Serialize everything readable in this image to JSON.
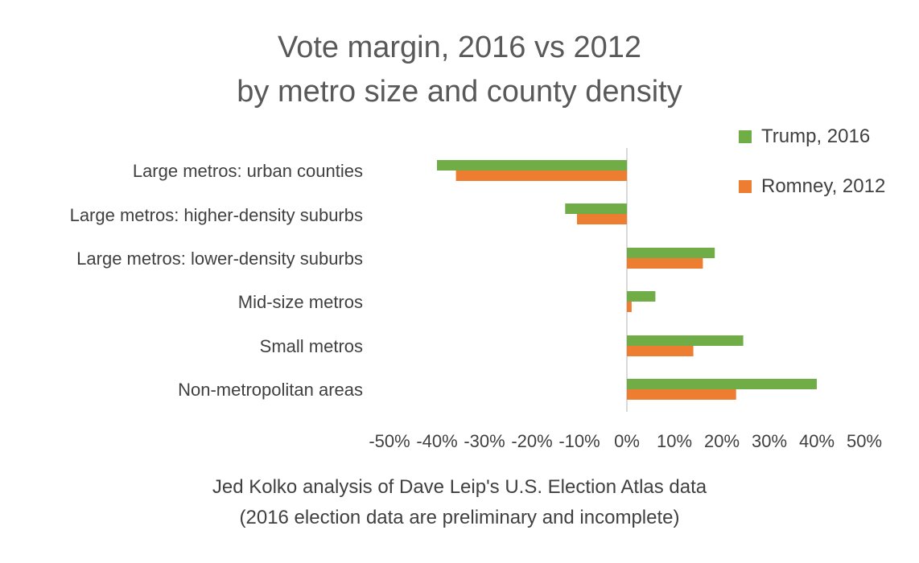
{
  "chart_data": {
    "type": "bar",
    "orientation": "horizontal",
    "title": "Vote margin, 2016 vs 2012",
    "subtitle": "by metro size and county density",
    "categories": [
      "Large metros: urban counties",
      "Large metros: higher-density suburbs",
      "Large metros: lower-density suburbs",
      "Mid-size metros",
      "Small metros",
      "Non-metropolitan areas"
    ],
    "series": [
      {
        "name": "Trump, 2016",
        "color": "#70ad47",
        "values": [
          -40,
          -13,
          18.5,
          6,
          24.5,
          40
        ]
      },
      {
        "name": "Romney, 2012",
        "color": "#ed7d31",
        "values": [
          -36,
          -10.5,
          16,
          1,
          14,
          23
        ]
      }
    ],
    "xlim": [
      -50,
      50
    ],
    "xticks": [
      "-50%",
      "-40%",
      "-30%",
      "-20%",
      "-10%",
      "0%",
      "10%",
      "20%",
      "30%",
      "40%",
      "50%"
    ],
    "grid": false,
    "legend": "top-right"
  },
  "source": {
    "line1": "Jed Kolko analysis of Dave Leip's U.S. Election Atlas data",
    "line2": "(2016 election data are preliminary and incomplete)"
  }
}
